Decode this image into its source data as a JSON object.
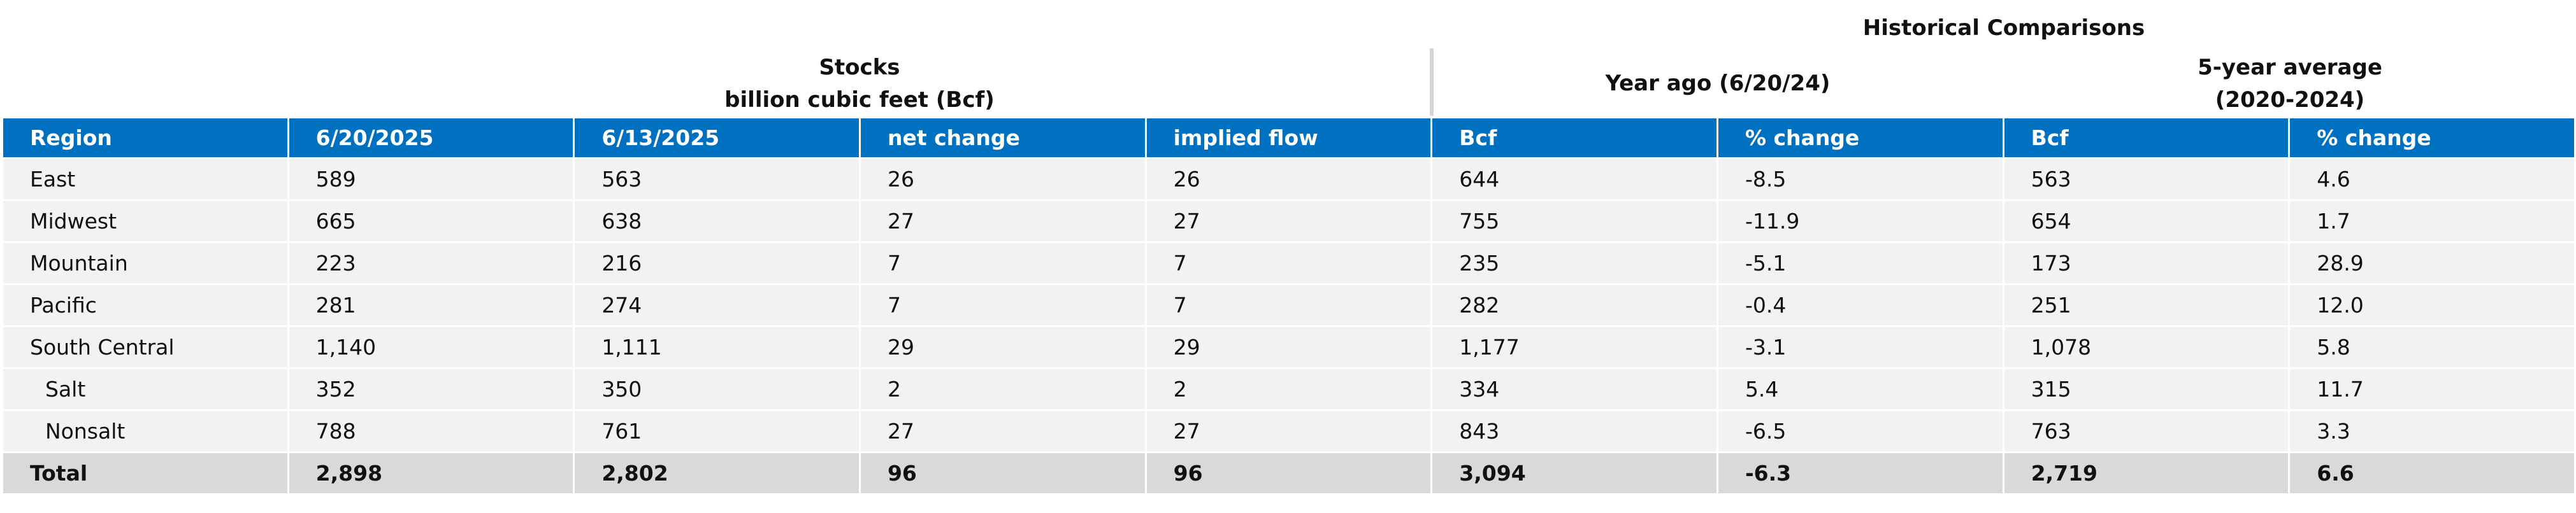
{
  "header": {
    "title": "Historical Comparisons",
    "groups": [
      {
        "lines": [
          "Stocks",
          "billion cubic feet (Bcf)"
        ]
      },
      {
        "lines": [
          "Year ago (6/20/24)"
        ]
      },
      {
        "lines": [
          "5-year average",
          "(2020-2024)"
        ]
      }
    ]
  },
  "table": {
    "columns": [
      "Region",
      "6/20/2025",
      "6/13/2025",
      "net change",
      "implied flow",
      "Bcf",
      "% change",
      "Bcf",
      "% change"
    ],
    "rows": [
      [
        "East",
        "589",
        "563",
        "26",
        "26",
        "644",
        "-8.5",
        "563",
        "4.6"
      ],
      [
        "Midwest",
        "665",
        "638",
        "27",
        "27",
        "755",
        "-11.9",
        "654",
        "1.7"
      ],
      [
        "Mountain",
        "223",
        "216",
        "7",
        "7",
        "235",
        "-5.1",
        "173",
        "28.9"
      ],
      [
        "Pacific",
        "281",
        "274",
        "7",
        "7",
        "282",
        "-0.4",
        "251",
        "12.0"
      ],
      [
        "South Central",
        "1,140",
        "1,111",
        "29",
        "29",
        "1,177",
        "-3.1",
        "1,078",
        "5.8"
      ],
      [
        "Salt",
        "352",
        "350",
        "2",
        "2",
        "334",
        "5.4",
        "315",
        "11.7"
      ],
      [
        "Nonsalt",
        "788",
        "761",
        "27",
        "27",
        "843",
        "-6.5",
        "763",
        "3.3"
      ],
      [
        "Total",
        "2,898",
        "2,802",
        "96",
        "96",
        "3,094",
        "-6.3",
        "2,719",
        "6.6"
      ]
    ]
  }
}
